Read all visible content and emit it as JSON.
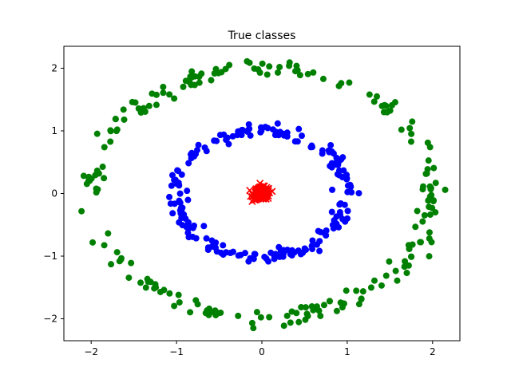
{
  "chart_data": {
    "type": "scatter",
    "title": "True classes",
    "xlabel": "",
    "ylabel": "",
    "xlim": [
      -2.32,
      2.32
    ],
    "ylim": [
      -2.35,
      2.35
    ],
    "xticks": [
      -2,
      -1,
      0,
      1,
      2
    ],
    "yticks": [
      -2,
      -1,
      0,
      1,
      2
    ],
    "xtick_labels": [
      "−2",
      "−1",
      "0",
      "1",
      "2"
    ],
    "ytick_labels": [
      "−2",
      "−1",
      "0",
      "1",
      "2"
    ],
    "grid": false,
    "legend": "none",
    "series": [
      {
        "marker": "circle",
        "color": "#008000",
        "shape": "ring",
        "count": 220,
        "radius": 2.0,
        "noise": 0.07
      },
      {
        "marker": "circle",
        "color": "#0000ff",
        "shape": "ring",
        "count": 200,
        "radius": 1.0,
        "noise": 0.05
      },
      {
        "marker": "x",
        "color": "#ff0000",
        "shape": "cluster",
        "count": 200,
        "center": [
          0,
          0
        ],
        "spread": 0.05
      }
    ]
  }
}
